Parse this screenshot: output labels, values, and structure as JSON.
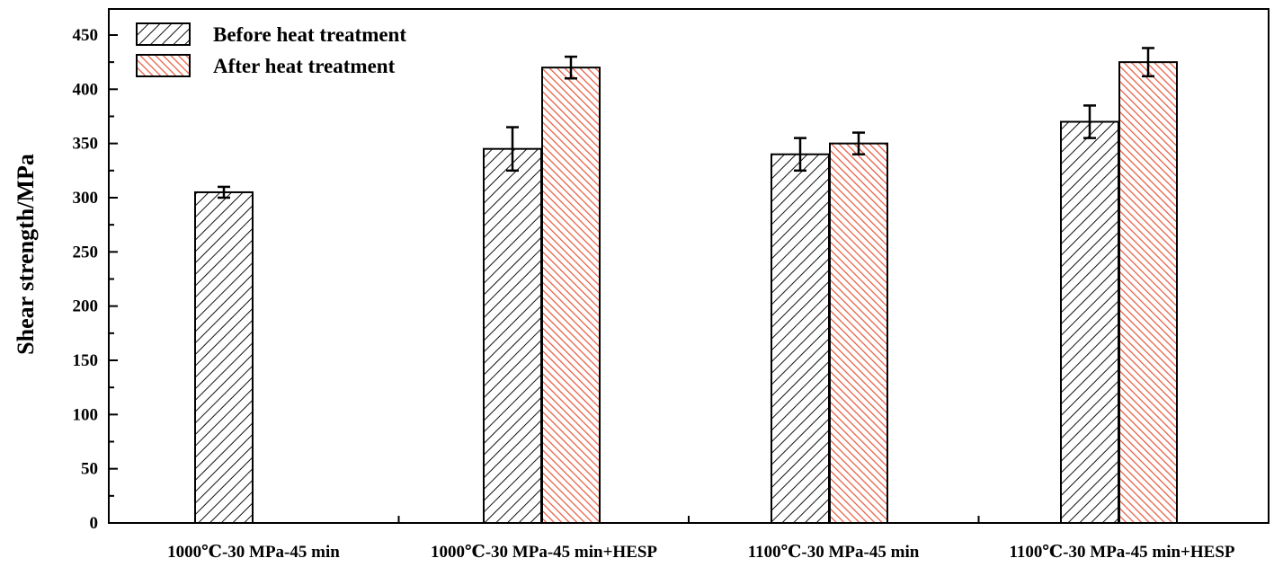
{
  "chart_data": {
    "type": "bar",
    "title": "",
    "xlabel": "",
    "ylabel": "Shear  strength/MPa",
    "ylim": [
      0,
      470
    ],
    "yticks": [
      0,
      50,
      100,
      150,
      200,
      250,
      300,
      350,
      400,
      450
    ],
    "categories": [
      "1000℃-30 MPa-45 min",
      "1000℃-30 MPa-45 min+HESP",
      "1100℃-30 MPa-45 min",
      "1100℃-30 MPa-45 min+HESP"
    ],
    "series": [
      {
        "name": "Before heat treatment",
        "color": "#000000",
        "pattern": "hatch-backslash",
        "values": [
          305,
          345,
          340,
          370
        ],
        "errors": [
          5,
          20,
          15,
          15
        ]
      },
      {
        "name": "After heat treatment",
        "color": "#e8553a",
        "pattern": "hatch-slash",
        "values": [
          null,
          420,
          350,
          425
        ],
        "errors": [
          null,
          10,
          10,
          13
        ]
      }
    ],
    "legend": "top-left",
    "grid": false
  }
}
